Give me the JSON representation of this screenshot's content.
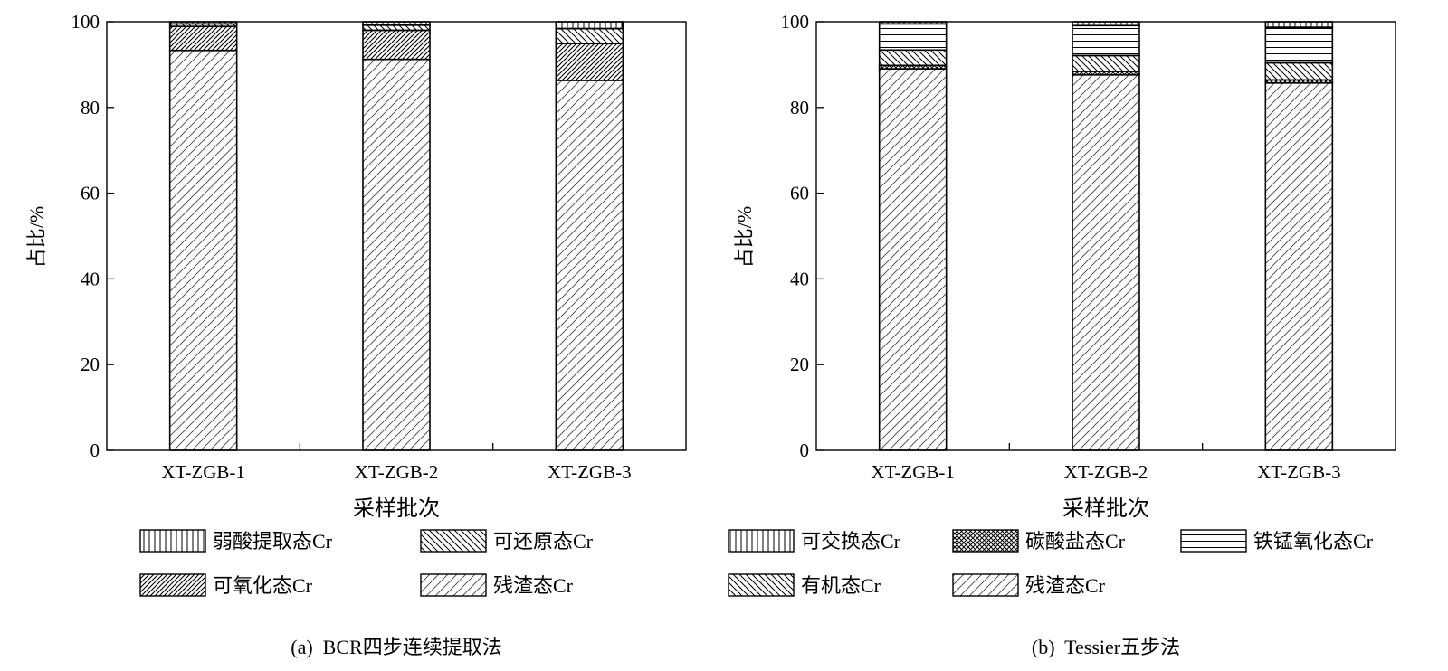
{
  "chart_data": [
    {
      "type": "bar",
      "stacked": true,
      "caption": "(a)  BCR四步连续提取法",
      "xlabel": "采样批次",
      "ylabel": "占比/%",
      "ylim": [
        0,
        100
      ],
      "yticks": [
        0,
        20,
        40,
        60,
        80,
        100
      ],
      "categories": [
        "XT-ZGB-1",
        "XT-ZGB-2",
        "XT-ZGB-3"
      ],
      "grid": false,
      "legend_position": "bottom",
      "series": [
        {
          "name": "残渣态Cr",
          "pattern": "hatch-fine-diag",
          "values": [
            93.3,
            91.2,
            86.3
          ]
        },
        {
          "name": "可氧化态Cr",
          "pattern": "hatch-dense-diag",
          "values": [
            5.6,
            6.8,
            8.6
          ]
        },
        {
          "name": "可还原态Cr",
          "pattern": "hatch-back-diag",
          "values": [
            0.6,
            1.2,
            3.5
          ]
        },
        {
          "name": "弱酸提取态Cr",
          "pattern": "hatch-vertical",
          "values": [
            0.5,
            0.8,
            1.6
          ]
        }
      ],
      "legend_order": [
        "弱酸提取态Cr",
        "可还原态Cr",
        "可氧化态Cr",
        "残渣态Cr"
      ]
    },
    {
      "type": "bar",
      "stacked": true,
      "caption": "(b)  Tessier五步法",
      "xlabel": "采样批次",
      "ylabel": "占比/%",
      "ylim": [
        0,
        100
      ],
      "yticks": [
        0,
        20,
        40,
        60,
        80,
        100
      ],
      "categories": [
        "XT-ZGB-1",
        "XT-ZGB-2",
        "XT-ZGB-3"
      ],
      "grid": false,
      "legend_position": "bottom",
      "series": [
        {
          "name": "残渣态Cr",
          "pattern": "hatch-fine-diag",
          "values": [
            89.0,
            87.6,
            85.7
          ]
        },
        {
          "name": "碳酸盐态Cr",
          "pattern": "hatch-cross",
          "values": [
            0.8,
            0.8,
            0.7
          ]
        },
        {
          "name": "有机态Cr",
          "pattern": "hatch-back-diag",
          "values": [
            3.6,
            3.7,
            4.0
          ]
        },
        {
          "name": "铁锰氧化态Cr",
          "pattern": "hatch-horizontal",
          "values": [
            6.1,
            7.0,
            8.3
          ]
        },
        {
          "name": "可交换态Cr",
          "pattern": "hatch-vertical",
          "values": [
            0.5,
            0.9,
            1.3
          ]
        }
      ],
      "legend_order": [
        "可交换态Cr",
        "碳酸盐态Cr",
        "铁锰氧化态Cr",
        "有机态Cr",
        "残渣态Cr"
      ]
    }
  ]
}
